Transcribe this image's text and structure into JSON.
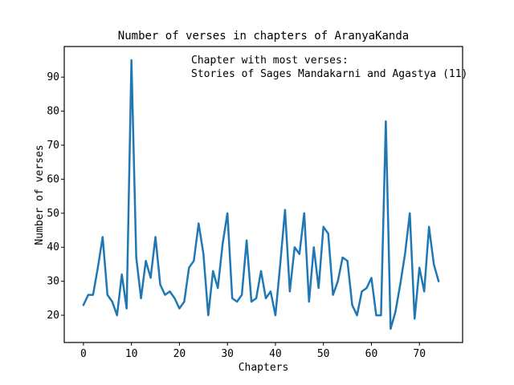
{
  "chart_data": {
    "type": "line",
    "title": "Number of verses in chapters of AranyaKanda",
    "xlabel": "Chapters",
    "ylabel": "Number of verses",
    "xlim": [
      -4,
      79
    ],
    "ylim": [
      12,
      99
    ],
    "xticks": [
      0,
      10,
      20,
      30,
      40,
      50,
      60,
      70
    ],
    "yticks": [
      20,
      30,
      40,
      50,
      60,
      70,
      80,
      90
    ],
    "grid": false,
    "annotation": {
      "line1": "Chapter with most verses:",
      "line2": "Stories of Sages Mandakarni and Agastya (11)"
    },
    "series": [
      {
        "color": "#1f77b4",
        "x": [
          0,
          1,
          2,
          3,
          4,
          5,
          6,
          7,
          8,
          9,
          10,
          11,
          12,
          13,
          14,
          15,
          16,
          17,
          18,
          19,
          20,
          21,
          22,
          23,
          24,
          25,
          26,
          27,
          28,
          29,
          30,
          31,
          32,
          33,
          34,
          35,
          36,
          37,
          38,
          39,
          40,
          41,
          42,
          43,
          44,
          45,
          46,
          47,
          48,
          49,
          50,
          51,
          52,
          53,
          54,
          55,
          56,
          57,
          58,
          59,
          60,
          61,
          62,
          63,
          64,
          65,
          66,
          67,
          68,
          69,
          70,
          71,
          72,
          73,
          74
        ],
        "values": [
          23,
          26,
          26,
          34,
          43,
          26,
          24,
          20,
          32,
          22,
          95,
          37,
          25,
          36,
          31,
          43,
          29,
          26,
          27,
          25,
          22,
          24,
          34,
          36,
          47,
          38,
          20,
          33,
          28,
          41,
          50,
          25,
          24,
          26,
          42,
          24,
          25,
          33,
          25,
          27,
          20,
          35,
          51,
          27,
          40,
          38,
          50,
          24,
          40,
          28,
          46,
          44,
          26,
          30,
          37,
          36,
          23,
          20,
          27,
          28,
          31,
          20,
          20,
          77,
          16,
          21,
          29,
          38,
          50,
          19,
          34,
          27,
          46,
          35,
          30
        ]
      }
    ]
  }
}
